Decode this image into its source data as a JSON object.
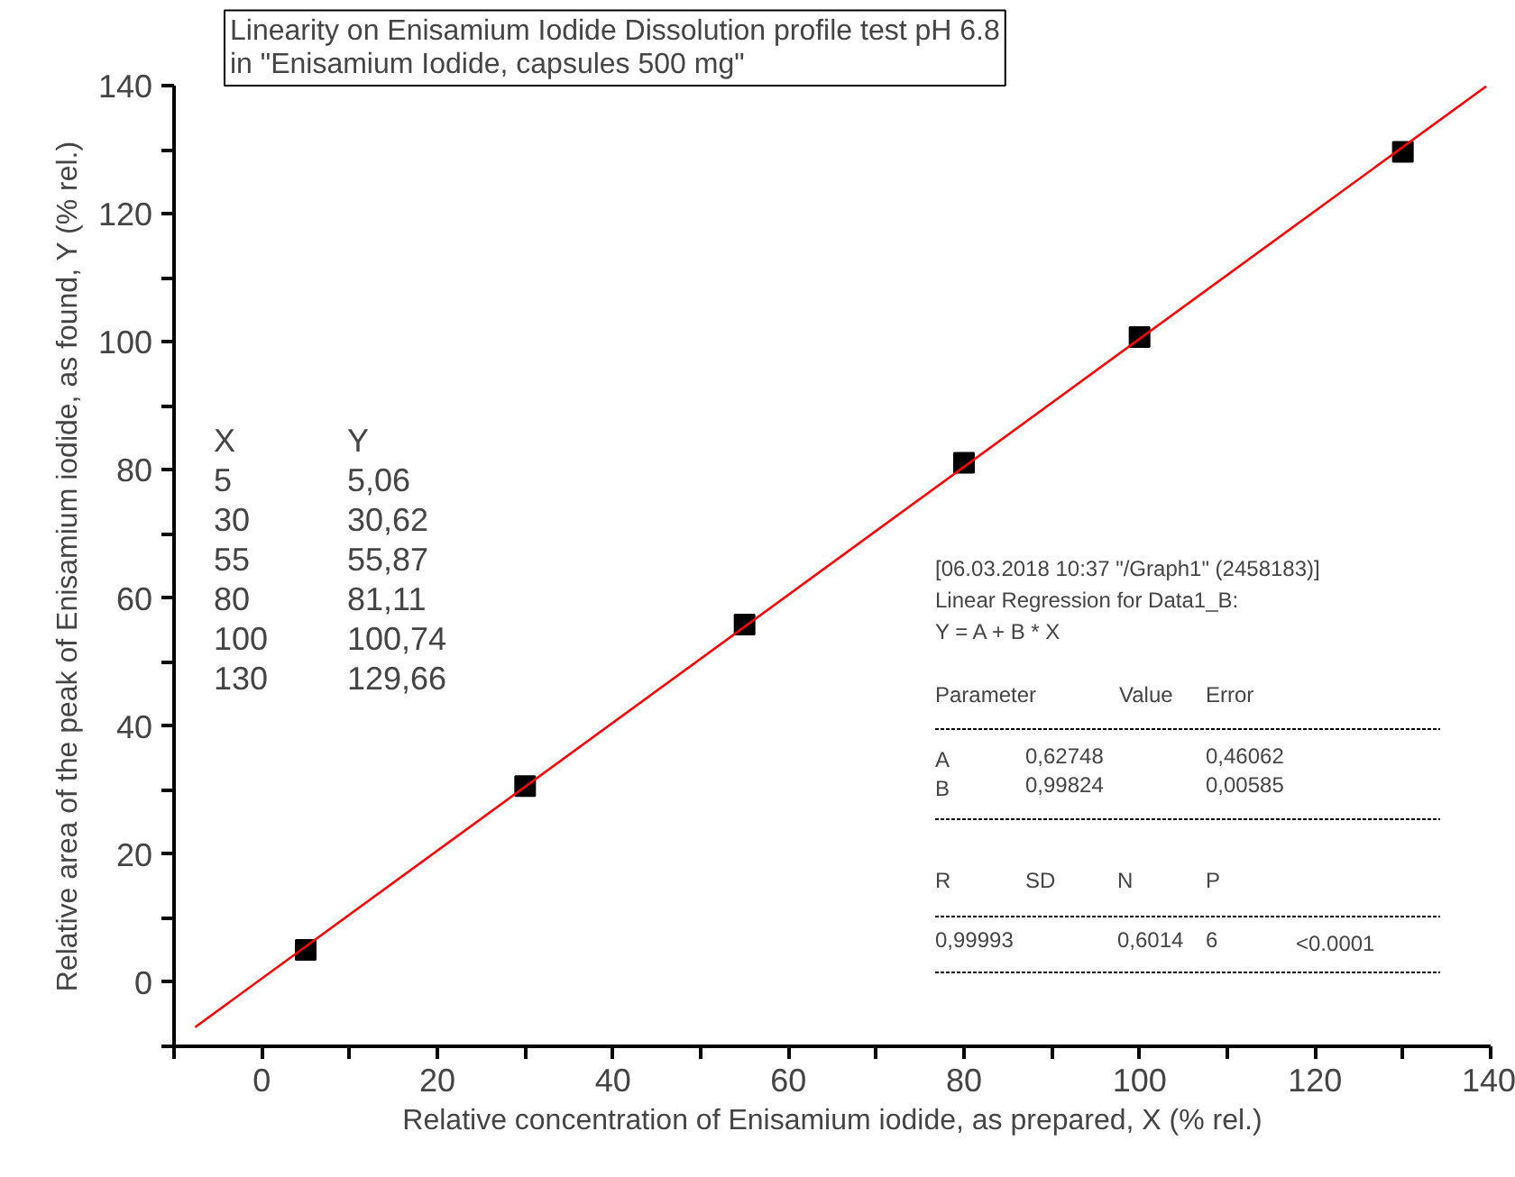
{
  "chart_data": {
    "type": "scatter",
    "title": "Linearity on Enisamium Iodide Dissolution profile test pH 6.8\nin \"Enisamium Iodide, capsules 500 mg\"",
    "xlabel": "Relative concentration of Enisamium iodide, as prepared, X (% rel.)",
    "ylabel": "Relative area of the peak of Enisamium iodide, as found, Y (% rel.)",
    "series": [
      {
        "color": "#000000",
        "marker": "square",
        "x": [
          5,
          30,
          55,
          80,
          100,
          130
        ],
        "values": [
          5.06,
          30.62,
          55.87,
          81.11,
          100.74,
          129.66
        ]
      },
      {
        "type": "line",
        "color": "#ff0000",
        "marker": "none",
        "line_style": "solid",
        "x": [
          -7.6,
          139.5
        ],
        "values": [
          -7.0,
          139.9
        ]
      }
    ],
    "xlim": [
      -10,
      140
    ],
    "ylim": [
      -10,
      140
    ],
    "xticks": [
      {
        "value": -10,
        "label": null
      },
      0,
      {
        "value": 10,
        "label": null
      },
      20,
      {
        "value": 30,
        "label": null
      },
      40,
      {
        "value": 50,
        "label": null
      },
      60,
      {
        "value": 70,
        "label": null
      },
      80,
      {
        "value": 90,
        "label": null
      },
      100,
      {
        "value": 110,
        "label": null
      },
      120,
      {
        "value": 130,
        "label": null
      },
      140
    ],
    "yticks": [
      {
        "value": -10,
        "label": null
      },
      0,
      {
        "value": 10,
        "label": null
      },
      20,
      {
        "value": 30,
        "label": null
      },
      40,
      {
        "value": 50,
        "label": null
      },
      60,
      {
        "value": 70,
        "label": null
      },
      80,
      {
        "value": 90,
        "label": null
      },
      100,
      {
        "value": 110,
        "label": null
      },
      120,
      {
        "value": 130,
        "label": null
      },
      140
    ],
    "grid": false,
    "annotations": [
      "X\n5\n30\n55\n80\n100\n130",
      "Y\n5,06\n30,62\n55,87\n81,11\n100,74\n129,66",
      "[06.03.2018 10:37 \"/Graph1\" (2458183)]\nLinear Regression for Data1_B:\nY = A + B * X",
      "Parameter",
      "Value",
      "Error",
      "A",
      "0,62748",
      "0,46062",
      "B",
      "0,99824",
      "0,00585",
      "R",
      "SD",
      "N",
      "P",
      "0,99993",
      "0,6014",
      "6",
      "<0.0001"
    ]
  }
}
